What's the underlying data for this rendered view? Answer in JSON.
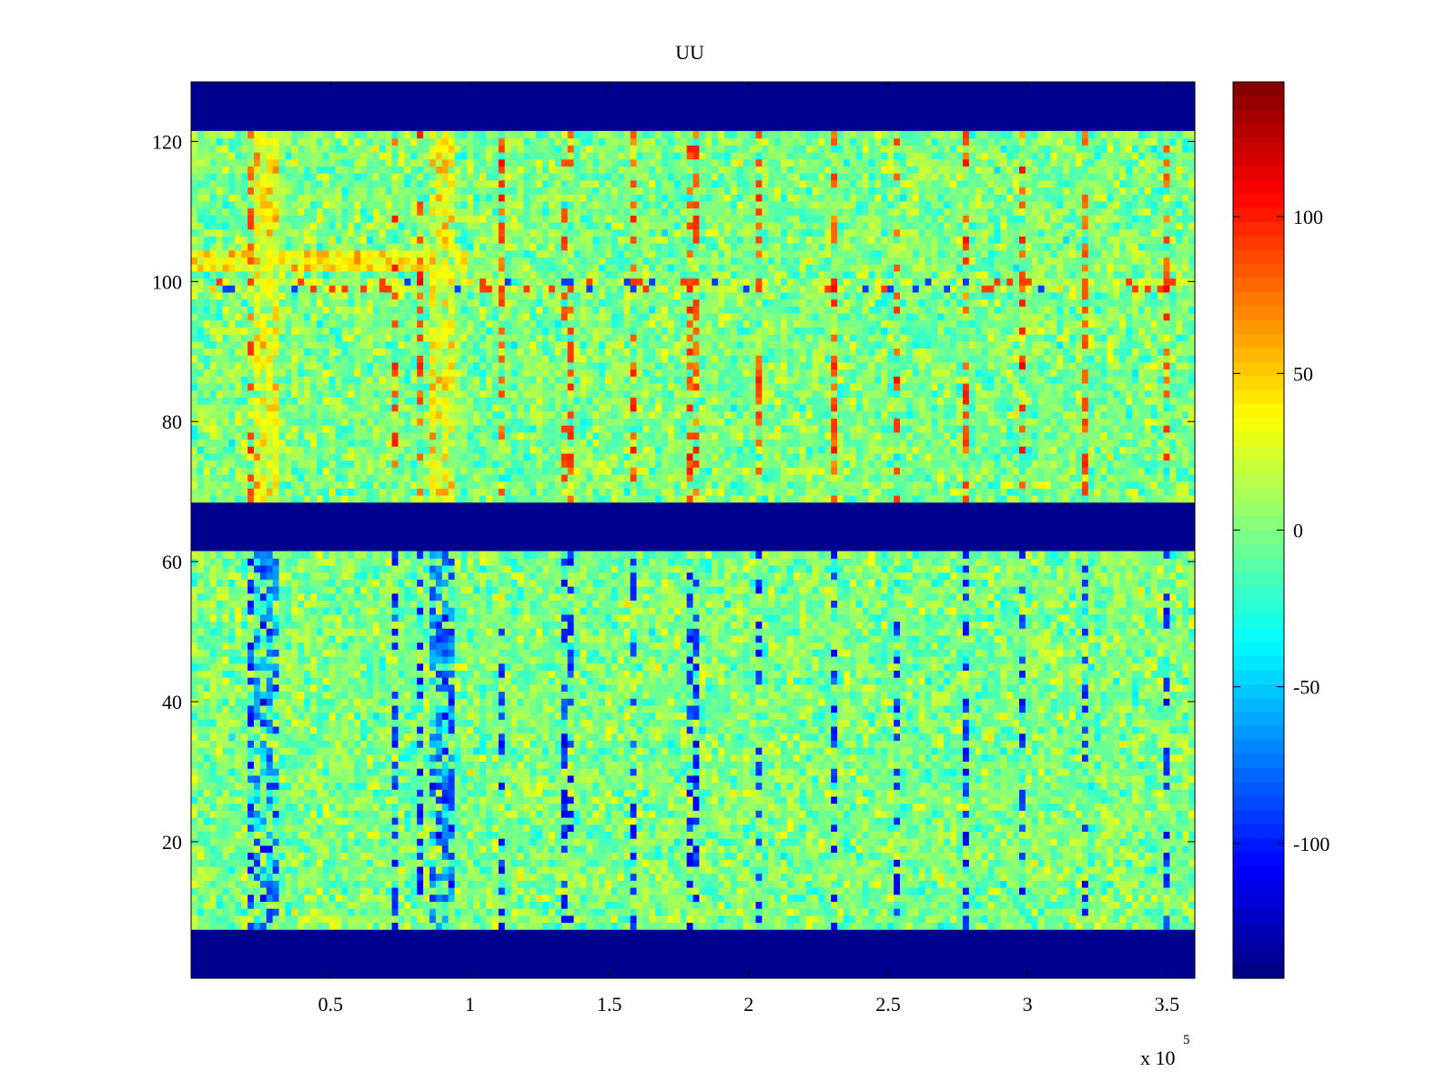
{
  "chart_data": {
    "type": "heatmap",
    "title": "UU",
    "xlabel": "",
    "ylabel": "",
    "x_exponent_label": "x 10",
    "x_exponent_power": "5",
    "xlim": [
      0,
      3.6
    ],
    "ylim": [
      0.5,
      128.5
    ],
    "x_ticks": [
      0.5,
      1,
      1.5,
      2,
      2.5,
      3,
      3.5
    ],
    "x_tick_labels": [
      "0.5",
      "1",
      "1.5",
      "2",
      "2.5",
      "3",
      "3.5"
    ],
    "y_ticks": [
      20,
      40,
      60,
      80,
      100,
      120
    ],
    "y_tick_labels": [
      "20",
      "40",
      "60",
      "80",
      "100",
      "120"
    ],
    "colormap": "jet",
    "clim": [
      -143,
      143
    ],
    "colorbar": {
      "placement": "right",
      "ticks": [
        -100,
        -50,
        0,
        50,
        100
      ],
      "tick_labels": [
        "-100",
        "-50",
        "0",
        "50",
        "100"
      ]
    },
    "empty_row_bands": [
      [
        1,
        7
      ],
      [
        62,
        68
      ],
      [
        122,
        128
      ]
    ],
    "empty_value": -143,
    "row_features": [
      {
        "rows": [
          102,
          104
        ],
        "mean": 40,
        "x_range": [
          0,
          1.0
        ],
        "note": "warm band"
      },
      {
        "rows": [
          99,
          100
        ],
        "mean": 10,
        "note": "row with scattered spikes"
      }
    ],
    "column_features": [
      {
        "x": 0.27,
        "width": 0.1,
        "top_mean": 30,
        "bottom_mean": -70
      },
      {
        "x": 0.9,
        "width": 0.1,
        "top_mean": 30,
        "bottom_mean": -70
      }
    ],
    "spike_columns_x": [
      0.21,
      0.73,
      0.83,
      1.12,
      1.35,
      1.58,
      1.8,
      2.03,
      2.3,
      2.53,
      2.77,
      2.98,
      3.2,
      3.5
    ],
    "background_mean": 0,
    "background_spread": 35
  }
}
